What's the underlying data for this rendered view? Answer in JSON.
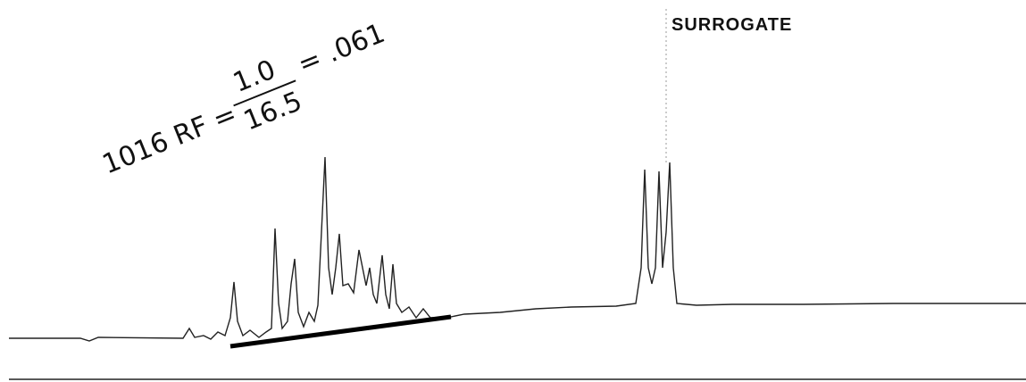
{
  "peak_label": "SURROGATE",
  "annotation": {
    "prefix": "1016 RF =",
    "numerator": "1.0",
    "denominator": "16.5",
    "result": "= .061"
  }
}
